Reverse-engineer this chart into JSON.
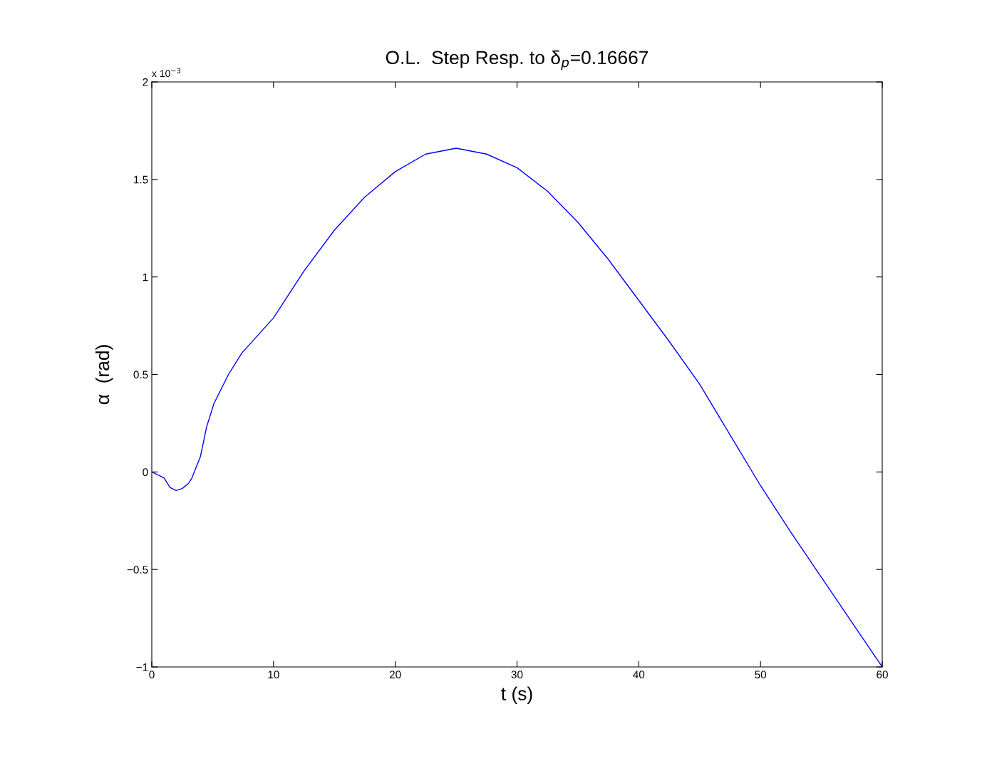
{
  "chart_data": {
    "type": "line",
    "title": "O.L.  Step Resp. to δ$_{p}$=0.16667",
    "xlabel": "t (s)",
    "ylabel": "α  (rad)",
    "annotations": [
      "x 10$^{−3}$"
    ],
    "x": [
      0,
      1,
      1.5,
      2,
      2.5,
      3,
      3.3,
      4,
      4.5,
      5.1,
      6.3,
      7.4,
      10,
      12.5,
      15,
      17.5,
      20,
      22.5,
      25,
      27.5,
      30,
      32.5,
      35,
      37.5,
      40,
      42.5,
      45,
      47.5,
      50,
      52.5,
      55,
      57.5,
      60
    ],
    "series": [
      {
        "color": "#0000ff",
        "values": [
          0,
          -0.03,
          -0.08,
          -0.095,
          -0.085,
          -0.06,
          -0.03,
          0.08,
          0.23,
          0.35,
          0.5,
          0.61,
          0.79,
          1.03,
          1.24,
          1.41,
          1.54,
          1.63,
          1.66,
          1.63,
          1.56,
          1.44,
          1.28,
          1.09,
          0.88,
          0.67,
          0.45,
          0.19,
          -0.07,
          -0.31,
          -0.54,
          -0.77,
          -1.0
        ]
      }
    ],
    "xlim": [
      0,
      60
    ],
    "xticks": [
      0,
      10,
      20,
      30,
      40,
      50,
      60
    ],
    "ylim": [
      -1,
      2
    ],
    "yticks": [
      -1,
      -0.5,
      0,
      0.5,
      1,
      1.5,
      2
    ],
    "grid": false,
    "marker": "none",
    "line_style": "solid"
  }
}
